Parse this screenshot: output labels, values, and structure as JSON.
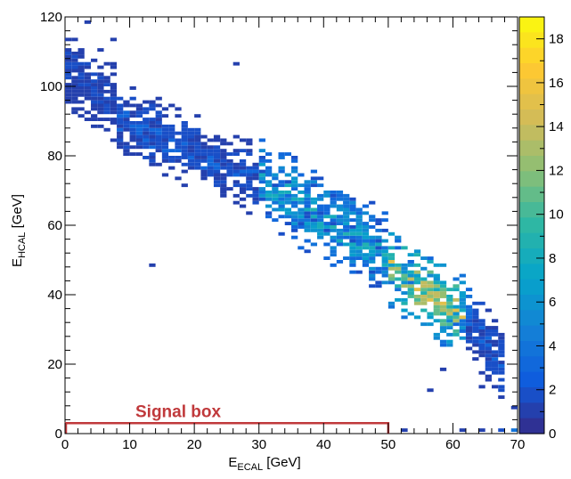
{
  "chart_data": {
    "type": "heatmap",
    "xlabel": {
      "main": "E",
      "sub": "ECAL",
      "unit": " [GeV]"
    },
    "ylabel": {
      "main": "E",
      "sub": "HCAL",
      "unit": " [GeV]"
    },
    "xlim": [
      0,
      70
    ],
    "ylim": [
      0,
      120
    ],
    "x_ticks": [
      0,
      10,
      20,
      30,
      40,
      50,
      60,
      70
    ],
    "y_ticks": [
      0,
      20,
      40,
      60,
      80,
      100,
      120
    ],
    "x_tick_labels": [
      "0",
      "10",
      "20",
      "30",
      "40",
      "50",
      "60",
      "70"
    ],
    "y_tick_labels": [
      "0",
      "20",
      "40",
      "60",
      "80",
      "100",
      "120"
    ],
    "bin_width": [
      1,
      1
    ],
    "colorbar": {
      "min": 0,
      "max": 19,
      "ticks": [
        0,
        2,
        4,
        6,
        8,
        10,
        12,
        14,
        16,
        18
      ],
      "tick_labels": [
        "0",
        "2",
        "4",
        "6",
        "8",
        "10",
        "12",
        "14",
        "16",
        "18"
      ],
      "colormap": [
        "#352a87",
        "#0f5cdd",
        "#1481d6",
        "#06a4ca",
        "#2eb7a4",
        "#87bf77",
        "#d1bb59",
        "#fec832",
        "#f9fb0e"
      ]
    },
    "distribution": {
      "bands": [
        {
          "x": [
            0,
            8
          ],
          "y_center_at_start": 105,
          "y_center_at_end": 93,
          "y_spread": 12,
          "count_range": [
            1,
            2
          ]
        },
        {
          "x": [
            8,
            30
          ],
          "y_center_at_start": 90,
          "y_center_at_end": 72,
          "y_spread": 10,
          "count_range": [
            1,
            3
          ]
        },
        {
          "x": [
            30,
            50
          ],
          "y_center_at_start": 72,
          "y_center_at_end": 50,
          "y_spread": 12,
          "count_range": [
            2,
            9
          ]
        },
        {
          "x": [
            50,
            62
          ],
          "y_center_at_start": 48,
          "y_center_at_end": 32,
          "y_spread": 12,
          "count_range": [
            3,
            16
          ]
        },
        {
          "x": [
            62,
            68
          ],
          "y_center_at_start": 32,
          "y_center_at_end": 18,
          "y_spread": 10,
          "count_range": [
            1,
            3
          ]
        }
      ],
      "peak": {
        "x": 56,
        "y": 38,
        "max_count": 16
      },
      "sparse_points": [
        {
          "x": 3,
          "y": 118,
          "count": 1
        },
        {
          "x": 7,
          "y": 113,
          "count": 1
        },
        {
          "x": 26,
          "y": 106,
          "count": 1
        },
        {
          "x": 13,
          "y": 48,
          "count": 1
        },
        {
          "x": 56,
          "y": 12,
          "count": 1
        },
        {
          "x": 58,
          "y": 18,
          "count": 1
        },
        {
          "x": 64,
          "y": 13,
          "count": 1
        },
        {
          "x": 69,
          "y": 7,
          "count": 1
        },
        {
          "x": 69,
          "y": 0.5,
          "count": 4
        },
        {
          "x": 67,
          "y": 0.5,
          "count": 2
        },
        {
          "x": 64,
          "y": 0.5,
          "count": 1
        },
        {
          "x": 61,
          "y": 0.5,
          "count": 1
        },
        {
          "x": 52,
          "y": 0.5,
          "count": 1
        }
      ]
    },
    "annotations": [
      {
        "text": "Signal box",
        "color": "#c0393b",
        "box": {
          "x_min": 0,
          "x_max": 50,
          "y_min": 0,
          "y_max": 3
        }
      }
    ]
  }
}
